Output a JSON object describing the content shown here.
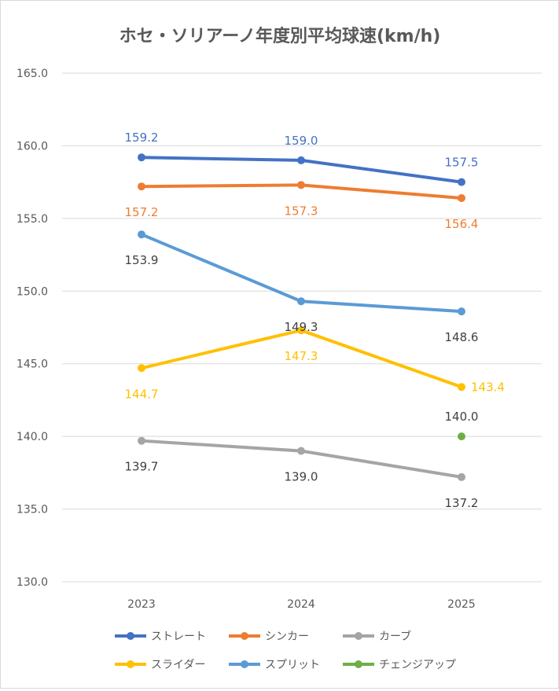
{
  "chart_data": {
    "type": "line",
    "title": "ホセ・ソリアーノ年度別平均球速(km/h)",
    "categories": [
      "2023",
      "2024",
      "2025"
    ],
    "ylim": [
      130,
      165
    ],
    "yticks": [
      "130.0",
      "135.0",
      "140.0",
      "145.0",
      "150.0",
      "155.0",
      "160.0",
      "165.0"
    ],
    "grid": true,
    "legend_position": "bottom",
    "series": [
      {
        "name": "ストレート",
        "color": "#4472C4",
        "values": [
          159.2,
          159.0,
          157.5
        ],
        "labels": [
          "159.2",
          "159.0",
          "157.5"
        ],
        "label_pos": "above",
        "label_color": "#4472C4"
      },
      {
        "name": "シンカー",
        "color": "#ED7D31",
        "values": [
          157.2,
          157.3,
          156.4
        ],
        "labels": [
          "157.2",
          "157.3",
          "156.4"
        ],
        "label_pos": "below",
        "label_color": "#ED7D31"
      },
      {
        "name": "カーブ",
        "color": "#A5A5A5",
        "values": [
          139.7,
          139.0,
          137.2
        ],
        "labels": [
          "139.7",
          "139.0",
          "137.2"
        ],
        "label_pos": "below",
        "label_color": "#404040"
      },
      {
        "name": "スライダー",
        "color": "#FFC000",
        "values": [
          144.7,
          147.3,
          143.4
        ],
        "labels": [
          "144.7",
          "147.3",
          "143.4"
        ],
        "label_pos": "below",
        "label_color": "#FFC000"
      },
      {
        "name": "スプリット",
        "color": "#5B9BD5",
        "values": [
          153.9,
          149.3,
          148.6
        ],
        "labels": [
          "153.9",
          "149.3",
          "148.6"
        ],
        "label_pos": "below",
        "label_color": "#404040"
      },
      {
        "name": "チェンジアップ",
        "color": "#70AD47",
        "values": [
          null,
          null,
          140.0
        ],
        "labels": [
          null,
          null,
          "140.0"
        ],
        "label_pos": "above",
        "label_color": "#404040"
      }
    ]
  }
}
